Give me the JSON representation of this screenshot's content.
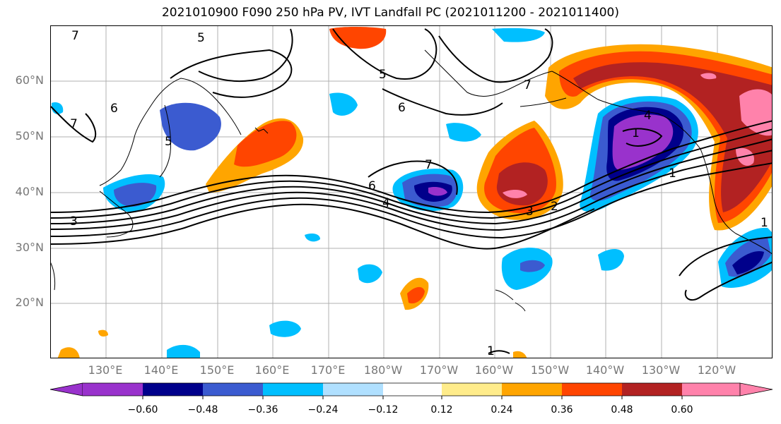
{
  "title": "2021010900 F090 250 hPa PV, IVT Landfall PC (2021011200 - 2021011400)",
  "lat_labels": [
    "60°N",
    "50°N",
    "40°N",
    "30°N",
    "20°N"
  ],
  "lon_labels": [
    "130°E",
    "140°E",
    "150°E",
    "160°E",
    "170°E",
    "180°W",
    "170°W",
    "160°W",
    "150°W",
    "140°W",
    "130°W",
    "120°W"
  ],
  "colorbar": {
    "ticks": [
      "−0.60",
      "−0.48",
      "−0.36",
      "−0.24",
      "−0.12",
      "0.12",
      "0.24",
      "0.36",
      "0.48",
      "0.60"
    ],
    "colors": [
      "#9932cc",
      "#00008b",
      "#3b5bd0",
      "#00bfff",
      "#b0e0ff",
      "#ffffff",
      "#ffec8b",
      "#ffa500",
      "#ff4500",
      "#b22222",
      "#ff82ab"
    ]
  },
  "contour_labels": [
    "7",
    "5",
    "5",
    "6",
    "6",
    "7",
    "7",
    "5",
    "3",
    "7",
    "6",
    "4",
    "3",
    "2",
    "1",
    "1",
    "4",
    "1",
    "1"
  ]
}
